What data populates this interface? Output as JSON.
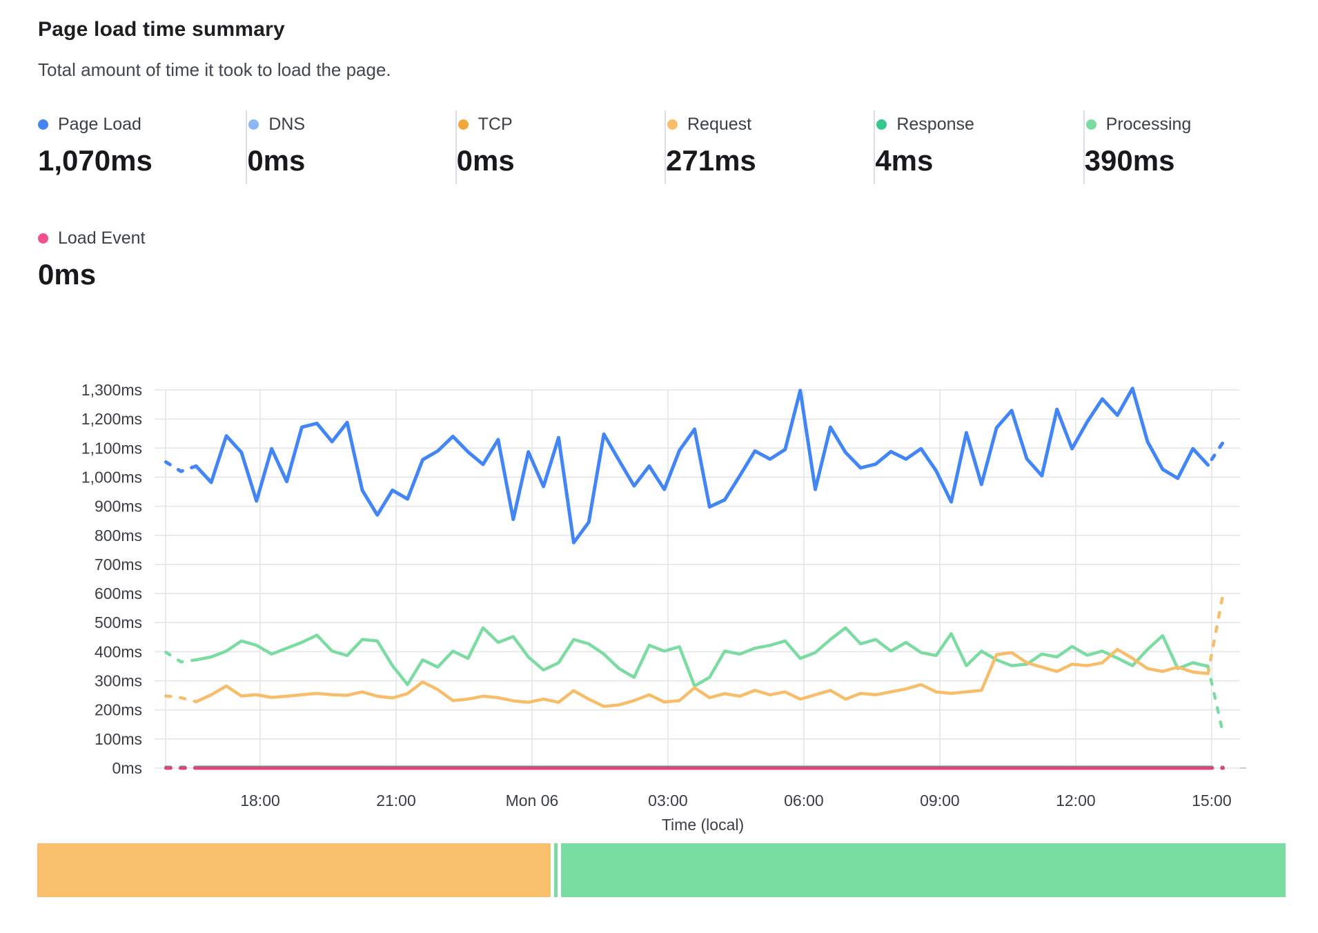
{
  "header": {
    "title": "Page load time summary",
    "subtitle": "Total amount of time it took to load the page."
  },
  "metrics": [
    {
      "id": "page-load",
      "label": "Page Load",
      "value": "1,070ms",
      "dot_color": "#4285f4"
    },
    {
      "id": "dns",
      "label": "DNS",
      "value": "0ms",
      "dot_color": "#8ab9f9"
    },
    {
      "id": "tcp",
      "label": "TCP",
      "value": "0ms",
      "dot_color": "#f2a73d"
    },
    {
      "id": "request",
      "label": "Request",
      "value": "271ms",
      "dot_color": "#f7bd68"
    },
    {
      "id": "response",
      "label": "Response",
      "value": "4ms",
      "dot_color": "#35c78d"
    },
    {
      "id": "processing",
      "label": "Processing",
      "value": "390ms",
      "dot_color": "#7bdca2"
    },
    {
      "id": "load-event",
      "label": "Load Event",
      "value": "0ms",
      "dot_color": "#f2508c"
    }
  ],
  "chart_data": {
    "type": "line",
    "title": "Page load time summary",
    "xlabel": "Time (local)",
    "ylabel": "",
    "y_axis": {
      "min": 0,
      "max": 1300,
      "tick_step": 100,
      "unit": "ms"
    },
    "x_axis": {
      "start_hour": 15.92,
      "step_hour": 0.33333,
      "n_points": 71,
      "ticks": [
        {
          "hour": 18,
          "label": "18:00"
        },
        {
          "hour": 21,
          "label": "21:00"
        },
        {
          "hour": 24,
          "label": "Mon 06"
        },
        {
          "hour": 27,
          "label": "03:00"
        },
        {
          "hour": 30,
          "label": "06:00"
        },
        {
          "hour": 33,
          "label": "09:00"
        },
        {
          "hour": 36,
          "label": "12:00"
        },
        {
          "hour": 39,
          "label": "15:00"
        }
      ]
    },
    "grid": true,
    "legend_position": "top-stats",
    "dash_head_points": 2,
    "dash_tail_points": 2,
    "series": [
      {
        "id": "dns",
        "name": "DNS",
        "color": "#8ab9f9",
        "width": 3,
        "values_constant": 0
      },
      {
        "id": "tcp",
        "name": "TCP",
        "color": "#f2a73d",
        "width": 3,
        "values_constant": 0
      },
      {
        "id": "response",
        "name": "Response",
        "color": "#2fbe83",
        "width": 3.5,
        "values_constant": 4
      },
      {
        "id": "load_event",
        "name": "Load Event",
        "color": "#e2417e",
        "width": 5,
        "values_constant": 0
      },
      {
        "id": "processing",
        "name": "Processing",
        "color": "#7bdca2",
        "width": 4.5,
        "values": [
          398,
          365,
          372,
          382,
          402,
          437,
          422,
          392,
          412,
          432,
          457,
          402,
          387,
          442,
          437,
          352,
          287,
          372,
          347,
          402,
          377,
          482,
          432,
          452,
          382,
          337,
          362,
          442,
          427,
          392,
          342,
          312,
          422,
          402,
          417,
          282,
          312,
          402,
          392,
          412,
          422,
          437,
          377,
          397,
          442,
          482,
          427,
          442,
          402,
          432,
          397,
          387,
          462,
          352,
          402,
          372,
          352,
          357,
          392,
          382,
          418,
          388,
          402,
          378,
          352,
          408,
          455,
          342,
          362,
          350,
          118
        ]
      },
      {
        "id": "request",
        "name": "Request",
        "color": "#f7bd68",
        "width": 4.5,
        "values": [
          248,
          242,
          228,
          252,
          282,
          248,
          252,
          243,
          247,
          252,
          257,
          252,
          250,
          262,
          247,
          241,
          256,
          296,
          270,
          232,
          237,
          247,
          242,
          231,
          226,
          237,
          226,
          266,
          237,
          212,
          217,
          232,
          252,
          227,
          232,
          276,
          242,
          256,
          247,
          267,
          252,
          262,
          237,
          252,
          267,
          237,
          257,
          252,
          262,
          272,
          287,
          262,
          257,
          262,
          267,
          390,
          397,
          362,
          347,
          332,
          357,
          352,
          362,
          408,
          377,
          342,
          332,
          347,
          330,
          325,
          600
        ]
      },
      {
        "id": "page_load",
        "name": "Page Load",
        "color": "#4285f4",
        "width": 5,
        "values": [
          1052,
          1020,
          1038,
          982,
          1142,
          1085,
          918,
          1098,
          985,
          1172,
          1185,
          1122,
          1188,
          955,
          870,
          955,
          925,
          1060,
          1090,
          1140,
          1087,
          1044,
          1129,
          855,
          1087,
          968,
          1136,
          775,
          845,
          1148,
          1058,
          970,
          1038,
          958,
          1092,
          1165,
          898,
          922,
          1005,
          1090,
          1062,
          1095,
          1298,
          958,
          1172,
          1085,
          1032,
          1045,
          1088,
          1062,
          1098,
          1022,
          915,
          1153,
          975,
          1170,
          1229,
          1063,
          1005,
          1233,
          1098,
          1190,
          1269,
          1213,
          1305,
          1122,
          1027,
          996,
          1098,
          1042,
          1120
        ]
      }
    ]
  },
  "timeline": {
    "segments": [
      {
        "status": "degraded",
        "color": "#f9c16e",
        "width_pct": 41.0
      },
      {
        "status": "up",
        "color": "#79dda1",
        "width_pct": 0.28
      },
      {
        "status": "up",
        "color": "#79dda1",
        "width_pct": 57.9
      }
    ]
  }
}
